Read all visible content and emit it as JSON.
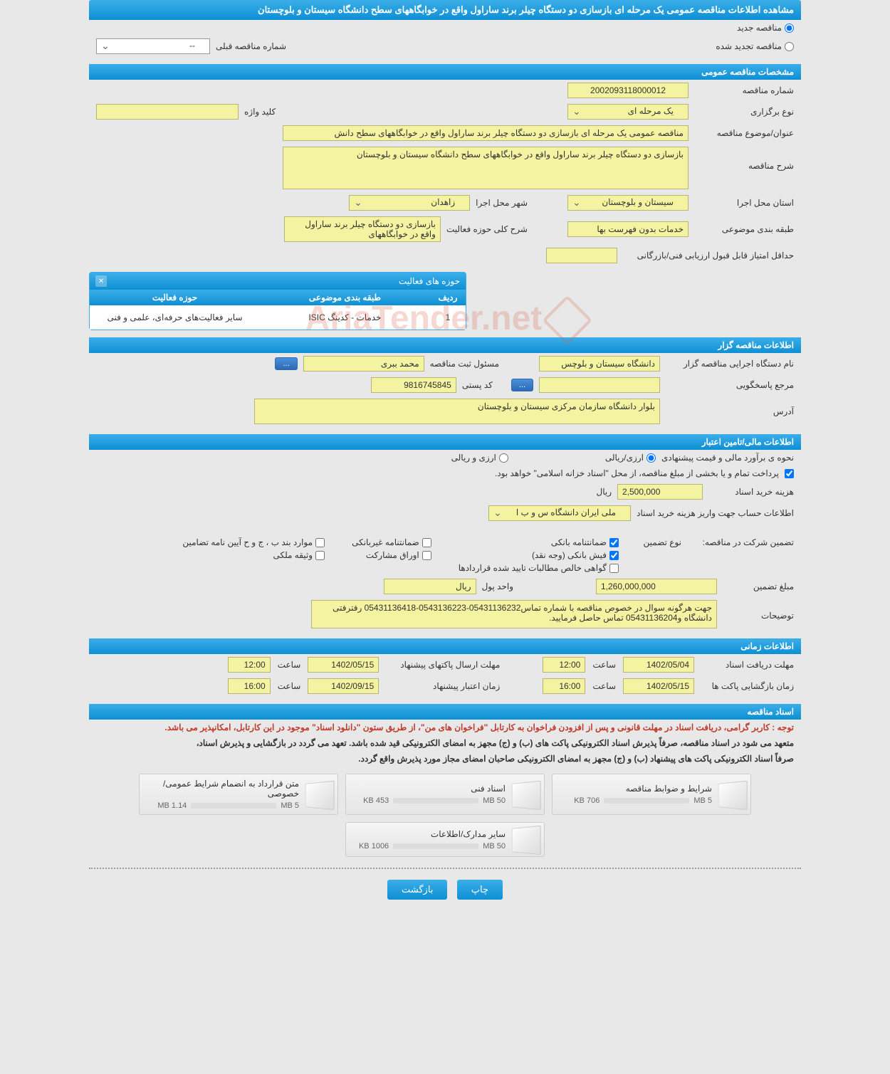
{
  "page_title": "مشاهده اطلاعات مناقصه عمومی یک مرحله ای بازسازی دو دستگاه چیلر برند ساراول واقع در خوابگاههای سطح دانشگاه سیستان و بلوچستان",
  "radio_options": {
    "new": "مناقصه جدید",
    "renewed": "مناقصه تجدید شده"
  },
  "prev_tender_label": "شماره مناقصه قبلی",
  "prev_tender_value": "--",
  "sections": {
    "general": "مشخصات مناقصه عمومی",
    "tenderer": "اطلاعات مناقصه گزار",
    "financial": "اطلاعات مالی/تامین اعتبار",
    "timing": "اطلاعات زمانی",
    "documents": "اسناد مناقصه"
  },
  "fields": {
    "tender_number_label": "شماره مناقصه",
    "tender_number_value": "2002093118000012",
    "holding_type_label": "نوع برگزاری",
    "holding_type_value": "یک مرحله ای",
    "keyword_label": "کلید واژه",
    "keyword_value": "",
    "subject_label": "عنوان/موضوع مناقصه",
    "subject_value": "مناقصه عمومی یک مرحله ای بازسازی دو دستگاه چیلر برند ساراول واقع در خوابگاههای سطح دانش",
    "description_label": "شرح مناقصه",
    "description_value": "بازسازی دو دستگاه چیلر برند ساراول واقع در خوابگاههای سطح دانشگاه سیستان و بلوچستان",
    "province_label": "استان محل اجرا",
    "province_value": "سیستان و بلوچستان",
    "city_label": "شهر محل اجرا",
    "city_value": "زاهدان",
    "category_label": "طبقه بندی موضوعی",
    "category_value": "خدمات بدون فهرست بها",
    "activity_desc_label": "شرح کلی حوزه فعالیت",
    "activity_desc_value": "بازسازی دو دستگاه چیلر برند ساراول واقع در خوابگاههای",
    "min_score_label": "حداقل امتیاز قابل قبول ارزیابی فنی/بازرگانی",
    "min_score_value": ""
  },
  "activity_table": {
    "title": "حوزه های فعالیت",
    "headers": {
      "row": "ردیف",
      "category": "طبقه بندی موضوعی",
      "activity": "حوزه فعالیت"
    },
    "data": {
      "row": "1",
      "category": "خدمات - کدینگ ISIC",
      "activity": "سایر فعالیت‌های حرفه‌ای، علمی و فنی"
    }
  },
  "tenderer": {
    "org_label": "نام دستگاه اجرایی مناقصه گزار",
    "org_value": "دانشگاه سیستان و بلوچس",
    "registrar_label": "مسئول ثبت مناقصه",
    "registrar_value": "محمد ببری",
    "contact_label": "مرجع پاسخگویی",
    "contact_value": "",
    "postal_label": "کد پستی",
    "postal_value": "9816745845",
    "address_label": "آدرس",
    "address_value": "بلوار دانشگاه سازمان مرکزی سیستان و بلوچستان"
  },
  "financial": {
    "estimate_label": "نحوه ی برآورد مالی و قیمت پیشنهادی",
    "rial_option": "ارزی/ریالی",
    "currency_option": "ارزی و ریالی",
    "payment_note": "پرداخت تمام و یا بخشی از مبلغ مناقصه، از محل \"اسناد خزانه اسلامی\" خواهد بود.",
    "doc_price_label": "هزینه خرید اسناد",
    "doc_price_value": "2,500,000",
    "rial_unit": "ریال",
    "account_label": "اطلاعات حساب جهت واریز هزینه خرید اسناد",
    "account_value": "ملی ایران دانشگاه س و ب ا",
    "guarantee_intro": "تضمین شرکت در مناقصه:",
    "guarantee_type_label": "نوع تضمین",
    "guarantee_options": {
      "bank": "ضمانتنامه بانکی",
      "nonbank": "ضمانتنامه غیربانکی",
      "items": "موارد بند ب ، ج و ح آیین نامه تضامین",
      "cash": "فیش بانکی (وجه نقد)",
      "bonds": "اوراق مشارکت",
      "property": "وثیقه ملکی",
      "cert": "گواهی خالص مطالبات تایید شده قراردادها"
    },
    "guarantee_amount_label": "مبلغ تضمین",
    "guarantee_amount_value": "1,260,000,000",
    "currency_unit_label": "واحد پول",
    "currency_unit_value": "ریال",
    "notes_label": "توضیحات",
    "notes_value": "جهت هرگونه سوال در خصوص مناقصه با شماره تماس05431136232-0543136223-05431136418 رفترفتی دانشگاه و05431136204 تماس حاصل فرمایید."
  },
  "timing": {
    "receive_deadline_label": "مهلت دریافت اسناد",
    "receive_deadline_date": "1402/05/04",
    "receive_deadline_time": "12:00",
    "send_deadline_label": "مهلت ارسال پاکتهای پیشنهاد",
    "send_deadline_date": "1402/05/15",
    "send_deadline_time": "12:00",
    "opening_label": "زمان بازگشایی پاکت ها",
    "opening_date": "1402/05/15",
    "opening_time": "16:00",
    "validity_label": "زمان اعتبار پیشنهاد",
    "validity_date": "1402/09/15",
    "validity_time": "16:00",
    "time_label": "ساعت"
  },
  "documents": {
    "notice_red": "توجه : کاربر گرامی، دریافت اسناد در مهلت قانونی و پس از افزودن فراخوان به کارتابل \"فراخوان های من\"، از طریق ستون \"دانلود اسناد\" موجود در این کارتابل، امکانپذیر می باشد.",
    "notice_1": "متعهد می شود در اسناد مناقصه، صرفاً پذیرش اسناد الکترونیکی پاکت های (ب) و (ج) مجهز به امضای الکترونیکی قید شده باشد. تعهد می گردد در بازگشایی و پذیرش اسناد،",
    "notice_2": "صرفاً اسناد الکترونیکی پاکت های پیشنهاد (ب) و (ج) مجهز به امضای الکترونیکی صاحبان امضای مجاز مورد پذیرش واقع گردد.",
    "files": [
      {
        "title": "شرایط و ضوابط مناقصه",
        "used": "706 KB",
        "total": "5 MB",
        "pct": 14
      },
      {
        "title": "اسناد فنی",
        "used": "453 KB",
        "total": "50 MB",
        "pct": 1
      },
      {
        "title": "متن قرارداد به انضمام شرایط عمومی/خصوصی",
        "used": "1.14 MB",
        "total": "5 MB",
        "pct": 23
      },
      {
        "title": "سایر مدارک/اطلاعات",
        "used": "1006 KB",
        "total": "50 MB",
        "pct": 2
      }
    ]
  },
  "buttons": {
    "more": "...",
    "print": "چاپ",
    "back": "بازگشت"
  },
  "watermark": "AriaTender.net"
}
